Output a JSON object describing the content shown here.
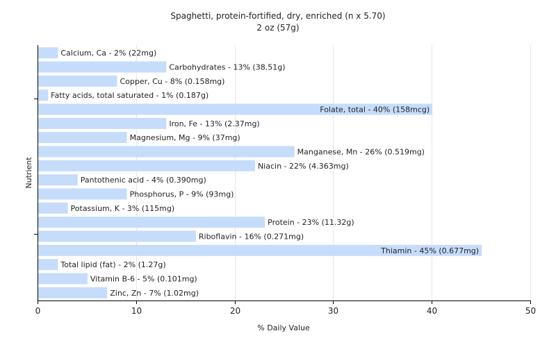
{
  "chart_data": {
    "type": "bar",
    "orientation": "horizontal",
    "title": "Spaghetti, protein-fortified, dry, enriched (n x 5.70)",
    "subtitle": "2 oz (57g)",
    "xlabel": "% Daily Value",
    "ylabel": "Nutrient",
    "xlim": [
      0,
      50
    ],
    "xticks": [
      "0",
      "10",
      "20",
      "30",
      "40",
      "50"
    ],
    "grid": true,
    "bar_color": "#c6dcfb",
    "categories": [
      "Calcium, Ca",
      "Carbohydrates",
      "Copper, Cu",
      "Fatty acids, total saturated",
      "Folate, total",
      "Iron, Fe",
      "Magnesium, Mg",
      "Manganese, Mn",
      "Niacin",
      "Pantothenic acid",
      "Phosphorus, P",
      "Potassium, K",
      "Protein",
      "Riboflavin",
      "Thiamin",
      "Total lipid (fat)",
      "Vitamin B-6",
      "Zinc, Zn"
    ],
    "values": [
      2,
      13,
      8,
      1,
      40,
      13,
      9,
      26,
      22,
      4,
      9,
      3,
      23,
      16,
      45,
      2,
      5,
      7
    ],
    "labels": [
      "Calcium, Ca - 2% (22mg)",
      "Carbohydrates - 13% (38.51g)",
      "Copper, Cu - 8% (0.158mg)",
      "Fatty acids, total saturated - 1% (0.187g)",
      "Folate, total - 40% (158mcg)",
      "Iron, Fe - 13% (2.37mg)",
      "Magnesium, Mg - 9% (37mg)",
      "Manganese, Mn - 26% (0.519mg)",
      "Niacin - 22% (4.363mg)",
      "Pantothenic acid - 4% (0.390mg)",
      "Phosphorus, P - 9% (93mg)",
      "Potassium, K - 3% (115mg)",
      "Protein - 23% (11.32g)",
      "Riboflavin - 16% (0.271mg)",
      "Thiamin - 45% (0.677mg)",
      "Total lipid (fat) - 2% (1.27g)",
      "Vitamin B-6 - 5% (0.101mg)",
      "Zinc, Zn - 7% (1.02mg)"
    ]
  }
}
